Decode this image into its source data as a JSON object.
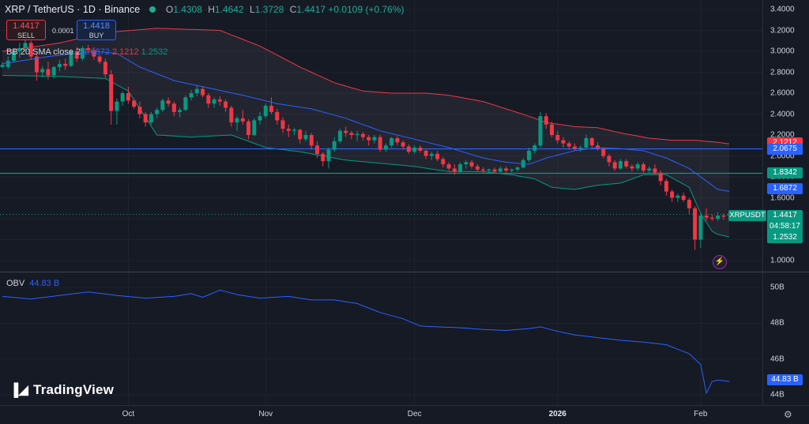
{
  "header": {
    "symbol": "XRP / TetherUS · 1D · Binance",
    "open_label": "O",
    "open": "1.4308",
    "high_label": "H",
    "high": "1.4642",
    "low_label": "L",
    "low": "1.3728",
    "close_label": "C",
    "close": "1.4417",
    "change": "+0.0109 (+0.76%)"
  },
  "trade": {
    "sell_price": "1.4417",
    "sell_label": "SELL",
    "buy_price": "1.4418",
    "buy_label": "BUY",
    "spread": "0.0001"
  },
  "indicators": {
    "bb_label": "BB 20 SMA close 2",
    "bb_mid": "1.6872",
    "bb_upper": "2.1212",
    "bb_lower": "1.2532",
    "obv_label": "OBV",
    "obv_value": "44.83 B"
  },
  "branding": {
    "logo": "TradingView"
  },
  "price_axis": {
    "ticks": [
      "3.4000",
      "3.2000",
      "3.0000",
      "2.8000",
      "2.6000",
      "2.4000",
      "2.2000",
      "2.0000",
      "1.8000",
      "1.6000",
      "1.4000",
      "1.2000",
      "1.0000"
    ],
    "tags": {
      "bb_upper": "2.1212",
      "hline_blue": "2.0675",
      "hline_green": "1.8342",
      "bb_mid": "1.6872",
      "last_price": "1.4417",
      "countdown": "04:58:17",
      "bb_lower": "1.2532"
    },
    "symbol_tag": "XRPUSDT"
  },
  "obv_axis": {
    "ticks": [
      "50B",
      "48B",
      "46B",
      "44B"
    ],
    "tag": "44.83 B"
  },
  "time_axis": {
    "labels": [
      "Oct",
      "Nov",
      "Dec",
      "2026",
      "Feb"
    ]
  },
  "colors": {
    "up": "#089981",
    "down": "#f23645",
    "mid": "#2962ff",
    "background": "#161a25"
  },
  "chart_data": {
    "type": "candlestick",
    "interval": "1D",
    "price_ylim": [
      1.0,
      3.4
    ],
    "obv_ylim": [
      44,
      50
    ],
    "hlines": [
      2.0675,
      1.8342
    ],
    "last_price": 1.4417,
    "ohlc": [
      [
        2.85,
        2.9,
        2.84,
        2.87
      ],
      [
        2.85,
        2.95,
        2.83,
        2.91
      ],
      [
        2.91,
        3.02,
        2.89,
        3.0
      ],
      [
        3.0,
        3.08,
        2.94,
        3.03
      ],
      [
        3.03,
        3.11,
        3.0,
        3.08
      ],
      [
        3.08,
        3.1,
        2.92,
        2.95
      ],
      [
        2.95,
        2.97,
        2.72,
        2.8
      ],
      [
        2.8,
        2.86,
        2.75,
        2.83
      ],
      [
        2.83,
        2.9,
        2.73,
        2.77
      ],
      [
        2.77,
        2.86,
        2.74,
        2.85
      ],
      [
        2.85,
        2.92,
        2.81,
        2.88
      ],
      [
        2.88,
        2.93,
        2.82,
        2.86
      ],
      [
        2.86,
        3.02,
        2.85,
        3.0
      ],
      [
        3.0,
        3.04,
        2.9,
        2.93
      ],
      [
        2.93,
        3.05,
        2.91,
        3.03
      ],
      [
        3.03,
        3.06,
        2.98,
        3.01
      ],
      [
        3.01,
        3.04,
        2.92,
        2.95
      ],
      [
        2.95,
        2.97,
        2.88,
        2.9
      ],
      [
        2.9,
        2.93,
        2.75,
        2.78
      ],
      [
        2.78,
        2.82,
        2.3,
        2.43
      ],
      [
        2.43,
        2.55,
        2.3,
        2.52
      ],
      [
        2.52,
        2.62,
        2.48,
        2.6
      ],
      [
        2.6,
        2.66,
        2.5,
        2.53
      ],
      [
        2.53,
        2.55,
        2.45,
        2.47
      ],
      [
        2.47,
        2.52,
        2.36,
        2.4
      ],
      [
        2.4,
        2.42,
        2.28,
        2.32
      ],
      [
        2.32,
        2.42,
        2.3,
        2.4
      ],
      [
        2.4,
        2.46,
        2.36,
        2.44
      ],
      [
        2.44,
        2.55,
        2.42,
        2.53
      ],
      [
        2.53,
        2.56,
        2.47,
        2.5
      ],
      [
        2.5,
        2.52,
        2.38,
        2.42
      ],
      [
        2.42,
        2.46,
        2.37,
        2.44
      ],
      [
        2.44,
        2.58,
        2.43,
        2.56
      ],
      [
        2.56,
        2.63,
        2.53,
        2.6
      ],
      [
        2.6,
        2.68,
        2.57,
        2.64
      ],
      [
        2.64,
        2.66,
        2.56,
        2.58
      ],
      [
        2.58,
        2.6,
        2.46,
        2.5
      ],
      [
        2.5,
        2.56,
        2.46,
        2.54
      ],
      [
        2.54,
        2.57,
        2.48,
        2.52
      ],
      [
        2.52,
        2.54,
        2.42,
        2.46
      ],
      [
        2.46,
        2.48,
        2.28,
        2.32
      ],
      [
        2.32,
        2.38,
        2.24,
        2.36
      ],
      [
        2.36,
        2.44,
        2.3,
        2.33
      ],
      [
        2.33,
        2.35,
        2.16,
        2.2
      ],
      [
        2.2,
        2.36,
        2.19,
        2.34
      ],
      [
        2.34,
        2.42,
        2.3,
        2.38
      ],
      [
        2.38,
        2.5,
        2.36,
        2.48
      ],
      [
        2.48,
        2.56,
        2.4,
        2.42
      ],
      [
        2.42,
        2.45,
        2.3,
        2.34
      ],
      [
        2.34,
        2.37,
        2.22,
        2.26
      ],
      [
        2.26,
        2.3,
        2.18,
        2.24
      ],
      [
        2.24,
        2.27,
        2.2,
        2.25
      ],
      [
        2.25,
        2.26,
        2.12,
        2.16
      ],
      [
        2.16,
        2.24,
        2.14,
        2.2
      ],
      [
        2.2,
        2.22,
        2.06,
        2.1
      ],
      [
        2.1,
        2.14,
        1.98,
        2.02
      ],
      [
        2.02,
        2.04,
        1.9,
        1.95
      ],
      [
        1.95,
        2.08,
        1.88,
        2.06
      ],
      [
        2.06,
        2.18,
        2.04,
        2.14
      ],
      [
        2.14,
        2.26,
        2.12,
        2.24
      ],
      [
        2.24,
        2.28,
        2.18,
        2.22
      ],
      [
        2.22,
        2.24,
        2.16,
        2.2
      ],
      [
        2.2,
        2.24,
        2.14,
        2.21
      ],
      [
        2.21,
        2.23,
        2.15,
        2.18
      ],
      [
        2.18,
        2.2,
        2.1,
        2.15
      ],
      [
        2.15,
        2.2,
        2.12,
        2.18
      ],
      [
        2.18,
        2.2,
        2.04,
        2.06
      ],
      [
        2.06,
        2.12,
        2.04,
        2.1
      ],
      [
        2.1,
        2.18,
        2.08,
        2.17
      ],
      [
        2.17,
        2.19,
        2.1,
        2.13
      ],
      [
        2.13,
        2.15,
        2.06,
        2.09
      ],
      [
        2.09,
        2.11,
        2.02,
        2.04
      ],
      [
        2.04,
        2.1,
        2.02,
        2.08
      ],
      [
        2.08,
        2.1,
        2.03,
        2.05
      ],
      [
        2.05,
        2.06,
        1.97,
        2.0
      ],
      [
        2.0,
        2.04,
        1.96,
        2.02
      ],
      [
        2.02,
        2.05,
        1.95,
        1.97
      ],
      [
        1.97,
        1.99,
        1.89,
        1.92
      ],
      [
        1.92,
        1.94,
        1.86,
        1.88
      ],
      [
        1.88,
        1.92,
        1.82,
        1.85
      ],
      [
        1.85,
        1.94,
        1.84,
        1.92
      ],
      [
        1.92,
        1.96,
        1.88,
        1.94
      ],
      [
        1.94,
        1.96,
        1.88,
        1.9
      ],
      [
        1.9,
        1.92,
        1.85,
        1.87
      ],
      [
        1.87,
        1.89,
        1.83,
        1.86
      ],
      [
        1.86,
        1.88,
        1.84,
        1.87
      ],
      [
        1.87,
        1.89,
        1.84,
        1.85
      ],
      [
        1.85,
        1.9,
        1.84,
        1.88
      ],
      [
        1.88,
        1.9,
        1.84,
        1.86
      ],
      [
        1.86,
        1.88,
        1.84,
        1.87
      ],
      [
        1.87,
        1.9,
        1.85,
        1.89
      ],
      [
        1.89,
        1.98,
        1.88,
        1.96
      ],
      [
        1.96,
        2.08,
        1.94,
        2.05
      ],
      [
        2.05,
        2.12,
        2.02,
        2.1
      ],
      [
        2.1,
        2.42,
        2.08,
        2.38
      ],
      [
        2.38,
        2.41,
        2.26,
        2.3
      ],
      [
        2.3,
        2.33,
        2.18,
        2.2
      ],
      [
        2.2,
        2.24,
        2.12,
        2.15
      ],
      [
        2.15,
        2.18,
        2.08,
        2.12
      ],
      [
        2.12,
        2.14,
        2.06,
        2.09
      ],
      [
        2.09,
        2.12,
        2.05,
        2.07
      ],
      [
        2.07,
        2.1,
        2.04,
        2.08
      ],
      [
        2.08,
        2.2,
        2.07,
        2.17
      ],
      [
        2.17,
        2.18,
        2.08,
        2.1
      ],
      [
        2.1,
        2.13,
        2.05,
        2.07
      ],
      [
        2.07,
        2.08,
        1.98,
        2.0
      ],
      [
        2.0,
        2.02,
        1.9,
        1.94
      ],
      [
        1.94,
        1.96,
        1.86,
        1.88
      ],
      [
        1.88,
        1.97,
        1.87,
        1.95
      ],
      [
        1.95,
        1.97,
        1.88,
        1.9
      ],
      [
        1.9,
        1.92,
        1.85,
        1.88
      ],
      [
        1.88,
        1.94,
        1.86,
        1.92
      ],
      [
        1.92,
        1.94,
        1.84,
        1.86
      ],
      [
        1.86,
        1.9,
        1.84,
        1.88
      ],
      [
        1.88,
        1.92,
        1.82,
        1.84
      ],
      [
        1.84,
        1.86,
        1.72,
        1.76
      ],
      [
        1.76,
        1.78,
        1.62,
        1.66
      ],
      [
        1.66,
        1.68,
        1.56,
        1.6
      ],
      [
        1.6,
        1.64,
        1.56,
        1.62
      ],
      [
        1.62,
        1.65,
        1.56,
        1.58
      ],
      [
        1.58,
        1.6,
        1.44,
        1.5
      ],
      [
        1.5,
        1.52,
        1.1,
        1.2
      ],
      [
        1.2,
        1.46,
        1.12,
        1.43
      ],
      [
        1.43,
        1.5,
        1.38,
        1.41
      ],
      [
        1.41,
        1.44,
        1.38,
        1.4
      ],
      [
        1.4,
        1.46,
        1.38,
        1.43
      ],
      [
        1.43,
        1.45,
        1.39,
        1.42
      ],
      [
        1.4308,
        1.4642,
        1.3728,
        1.4417
      ]
    ],
    "bb_upper": [
      [
        0,
        3.0
      ],
      [
        10,
        3.08
      ],
      [
        18,
        3.18
      ],
      [
        27,
        3.22
      ],
      [
        38,
        3.2
      ],
      [
        45,
        3.05
      ],
      [
        52,
        2.85
      ],
      [
        58,
        2.7
      ],
      [
        63,
        2.62
      ],
      [
        68,
        2.6
      ],
      [
        74,
        2.6
      ],
      [
        78,
        2.58
      ],
      [
        84,
        2.52
      ],
      [
        88,
        2.45
      ],
      [
        92,
        2.38
      ],
      [
        95,
        2.32
      ],
      [
        100,
        2.28
      ],
      [
        104,
        2.27
      ],
      [
        108,
        2.22
      ],
      [
        113,
        2.17
      ],
      [
        117,
        2.15
      ],
      [
        121,
        2.15
      ],
      [
        125,
        2.13
      ]
    ],
    "bb_mid": [
      [
        0,
        2.88
      ],
      [
        8,
        2.95
      ],
      [
        16,
        3.0
      ],
      [
        20,
        2.98
      ],
      [
        24,
        2.85
      ],
      [
        30,
        2.72
      ],
      [
        36,
        2.65
      ],
      [
        42,
        2.58
      ],
      [
        48,
        2.5
      ],
      [
        54,
        2.45
      ],
      [
        60,
        2.36
      ],
      [
        66,
        2.24
      ],
      [
        72,
        2.16
      ],
      [
        78,
        2.08
      ],
      [
        84,
        1.98
      ],
      [
        88,
        1.94
      ],
      [
        92,
        1.92
      ],
      [
        95,
        1.98
      ],
      [
        100,
        2.05
      ],
      [
        104,
        2.08
      ],
      [
        108,
        2.07
      ],
      [
        112,
        2.05
      ],
      [
        116,
        1.98
      ],
      [
        120,
        1.88
      ],
      [
        125,
        1.68
      ]
    ],
    "bb_lower": [
      [
        0,
        2.77
      ],
      [
        10,
        2.76
      ],
      [
        18,
        2.74
      ],
      [
        22,
        2.62
      ],
      [
        27,
        2.2
      ],
      [
        33,
        2.18
      ],
      [
        40,
        2.2
      ],
      [
        46,
        2.08
      ],
      [
        52,
        2.04
      ],
      [
        60,
        1.96
      ],
      [
        66,
        1.93
      ],
      [
        72,
        1.9
      ],
      [
        78,
        1.85
      ],
      [
        84,
        1.85
      ],
      [
        89,
        1.82
      ],
      [
        93,
        1.78
      ],
      [
        96,
        1.7
      ],
      [
        100,
        1.68
      ],
      [
        104,
        1.72
      ],
      [
        108,
        1.74
      ],
      [
        112,
        1.82
      ],
      [
        116,
        1.82
      ],
      [
        120,
        1.7
      ],
      [
        122,
        1.45
      ],
      [
        124,
        1.28
      ],
      [
        125,
        1.25
      ]
    ],
    "obv": [
      [
        0,
        49.5
      ],
      [
        5,
        49.35
      ],
      [
        10,
        49.55
      ],
      [
        15,
        49.75
      ],
      [
        20,
        49.55
      ],
      [
        25,
        49.4
      ],
      [
        30,
        49.5
      ],
      [
        33,
        49.65
      ],
      [
        35,
        49.45
      ],
      [
        38,
        49.85
      ],
      [
        41,
        49.6
      ],
      [
        45,
        49.4
      ],
      [
        50,
        49.5
      ],
      [
        54,
        49.3
      ],
      [
        58,
        49.3
      ],
      [
        62,
        49.1
      ],
      [
        66,
        48.6
      ],
      [
        70,
        48.25
      ],
      [
        73,
        47.85
      ],
      [
        76,
        47.8
      ],
      [
        80,
        47.75
      ],
      [
        84,
        47.65
      ],
      [
        88,
        47.6
      ],
      [
        92,
        47.7
      ],
      [
        94,
        47.8
      ],
      [
        97,
        47.55
      ],
      [
        100,
        47.35
      ],
      [
        104,
        47.2
      ],
      [
        108,
        47.05
      ],
      [
        112,
        46.95
      ],
      [
        116,
        46.8
      ],
      [
        120,
        46.3
      ],
      [
        122,
        45.7
      ],
      [
        123,
        44.1
      ],
      [
        124,
        44.75
      ],
      [
        125,
        44.83
      ]
    ],
    "x_labels": [
      {
        "label": "Oct",
        "index": 22
      },
      {
        "label": "Nov",
        "index": 46
      },
      {
        "label": "Dec",
        "index": 72
      },
      {
        "label": "2026",
        "index": 97
      },
      {
        "label": "Feb",
        "index": 122
      }
    ]
  }
}
